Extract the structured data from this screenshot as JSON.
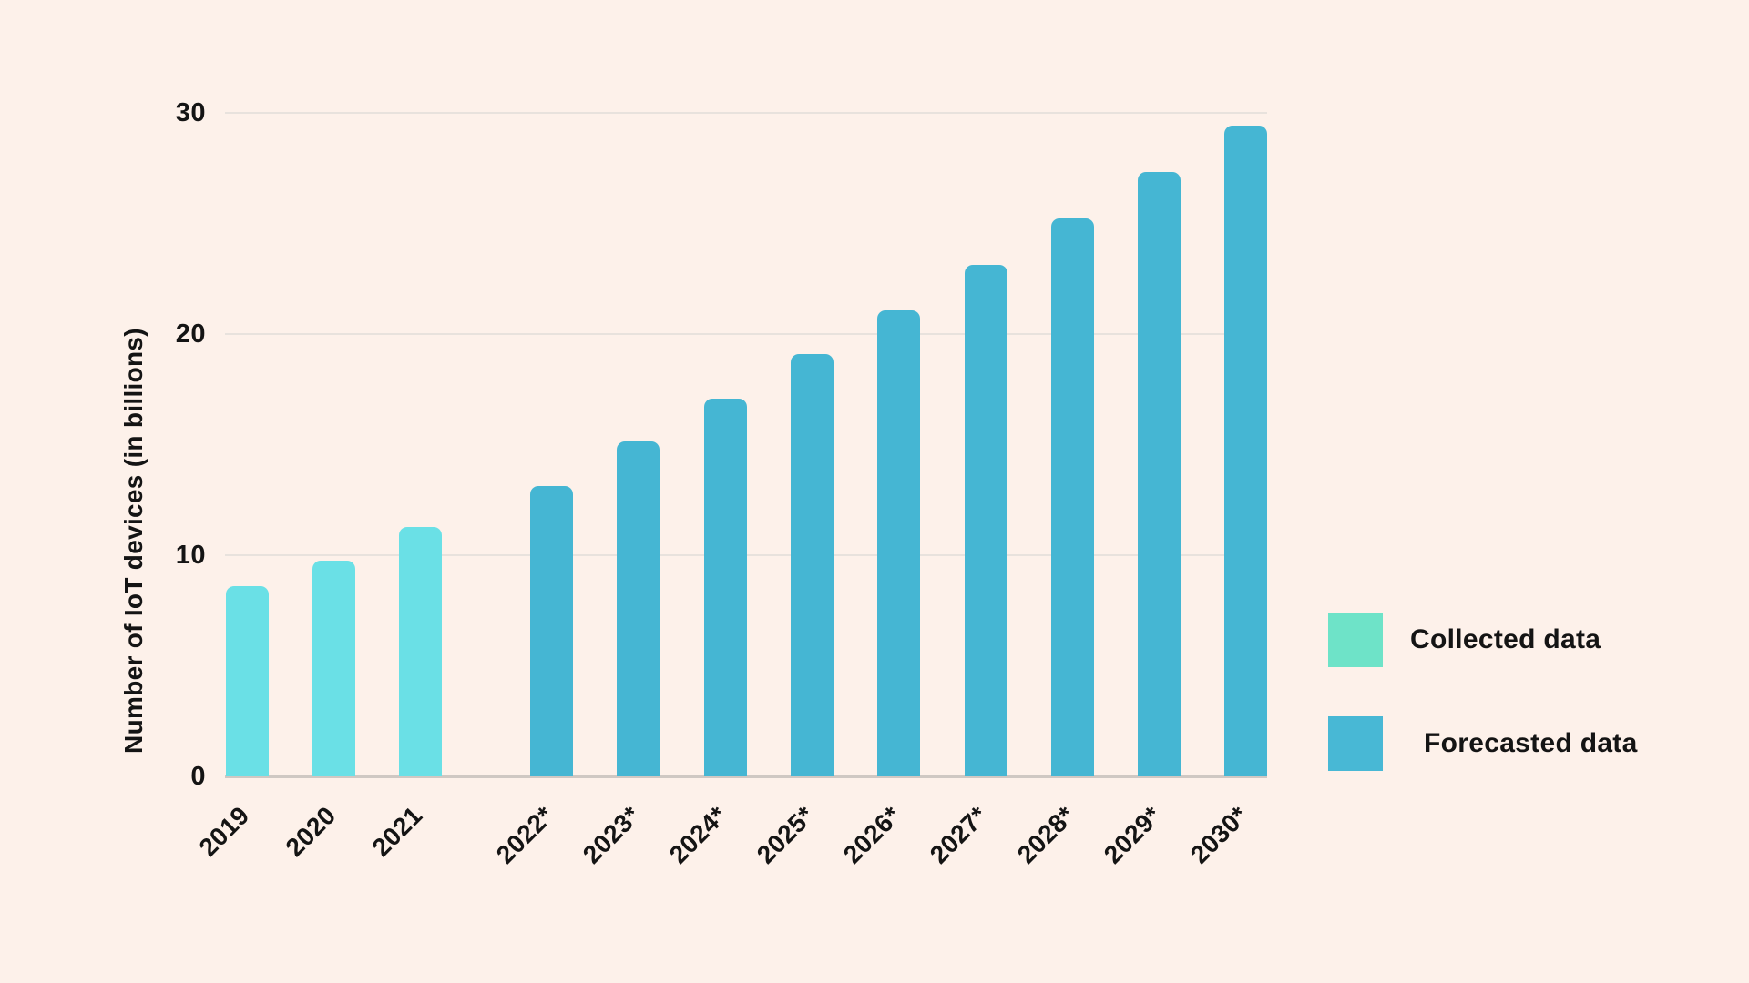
{
  "colors": {
    "background": "#FDF1EA",
    "collected_bar": "#6AE0E6",
    "forecasted_bar": "#45B6D3",
    "legend_collected_swatch": "#6EE3C8",
    "legend_forecasted_swatch": "#48B8D5",
    "gridline": "#E8E2DD",
    "baseline": "#CFC8C3",
    "text": "#141414"
  },
  "chart_data": {
    "type": "bar",
    "title": "",
    "xlabel": "",
    "ylabel": "Number of IoT devices (in billions)",
    "ylim": [
      0,
      30
    ],
    "yticks": [
      0,
      10,
      20,
      30
    ],
    "grid": "horizontal gridlines at 10, 20, 30; solid baseline at 0",
    "legend_position": "right",
    "categories": [
      "2019",
      "2020",
      "2021",
      "2022*",
      "2023*",
      "2024*",
      "2025*",
      "2026*",
      "2027*",
      "2028*",
      "2029*",
      "2030*"
    ],
    "series": [
      {
        "name": "Collected data",
        "color": "#6AE0E6",
        "categories": [
          "2019",
          "2020",
          "2021"
        ],
        "values": [
          8.6,
          9.76,
          11.28
        ]
      },
      {
        "name": "Forecasted data",
        "color": "#45B6D3",
        "categories": [
          "2022*",
          "2023*",
          "2024*",
          "2025*",
          "2026*",
          "2027*",
          "2028*",
          "2029*",
          "2030*"
        ],
        "values": [
          13.14,
          15.14,
          17.08,
          19.08,
          21.09,
          23.14,
          25.21,
          27.31,
          29.42
        ]
      }
    ],
    "bars": [
      {
        "label": "2019",
        "value": 8.6,
        "series": "Collected data"
      },
      {
        "label": "2020",
        "value": 9.76,
        "series": "Collected data"
      },
      {
        "label": "2021",
        "value": 11.28,
        "series": "Collected data"
      },
      {
        "label": "2022*",
        "value": 13.14,
        "series": "Forecasted data"
      },
      {
        "label": "2023*",
        "value": 15.14,
        "series": "Forecasted data"
      },
      {
        "label": "2024*",
        "value": 17.08,
        "series": "Forecasted data"
      },
      {
        "label": "2025*",
        "value": 19.08,
        "series": "Forecasted data"
      },
      {
        "label": "2026*",
        "value": 21.09,
        "series": "Forecasted data"
      },
      {
        "label": "2027*",
        "value": 23.14,
        "series": "Forecasted data"
      },
      {
        "label": "2028*",
        "value": 25.21,
        "series": "Forecasted data"
      },
      {
        "label": "2029*",
        "value": 27.31,
        "series": "Forecasted data"
      },
      {
        "label": "2030*",
        "value": 29.42,
        "series": "Forecasted data"
      }
    ]
  },
  "legend": {
    "items": [
      {
        "label": "Collected data",
        "swatch_color": "#6EE3C8"
      },
      {
        "label": "Forecasted data",
        "swatch_color": "#48B8D5"
      }
    ]
  }
}
